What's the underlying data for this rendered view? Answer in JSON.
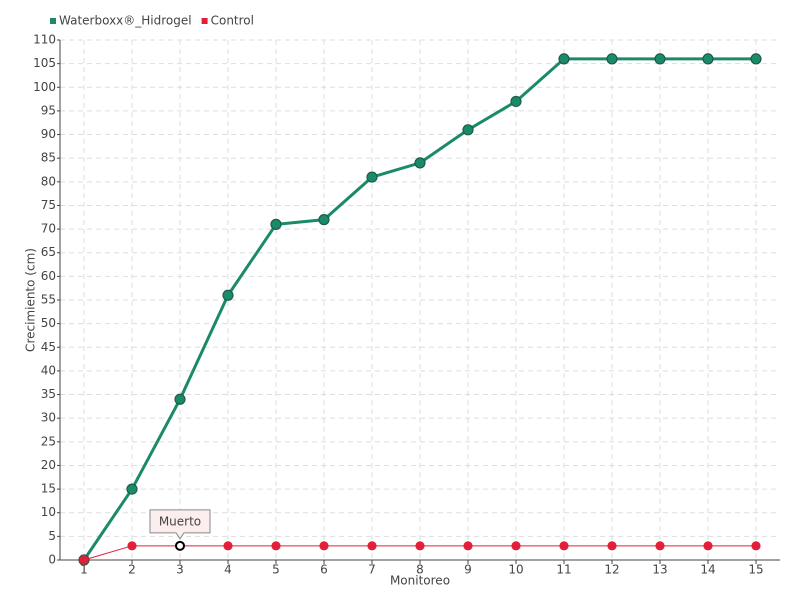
{
  "chart_data": {
    "type": "line",
    "categories": [
      "1",
      "2",
      "3",
      "4",
      "5",
      "6",
      "7",
      "8",
      "9",
      "10",
      "11",
      "12",
      "13",
      "14",
      "15"
    ],
    "series": [
      {
        "name": "Waterboxx®_Hidrogel",
        "color": "#1a8a6a",
        "values": [
          0,
          15,
          34,
          56,
          71,
          72,
          81,
          84,
          91,
          97,
          106,
          106,
          106,
          106,
          106
        ]
      },
      {
        "name": "Control",
        "color": "#e0203a",
        "values": [
          0,
          3,
          3,
          3,
          3,
          3,
          3,
          3,
          3,
          3,
          3,
          3,
          3,
          3,
          3
        ]
      }
    ],
    "ylim": [
      0,
      110
    ],
    "yticks": [
      0,
      5,
      10,
      15,
      20,
      25,
      30,
      35,
      40,
      45,
      50,
      55,
      60,
      65,
      70,
      75,
      80,
      85,
      90,
      95,
      100,
      105,
      110
    ],
    "grid": true,
    "x_label": "Monitoreo",
    "y_label": "Crecimiento (cm)",
    "annotations": [
      {
        "text": "Muerto"
      }
    ]
  }
}
